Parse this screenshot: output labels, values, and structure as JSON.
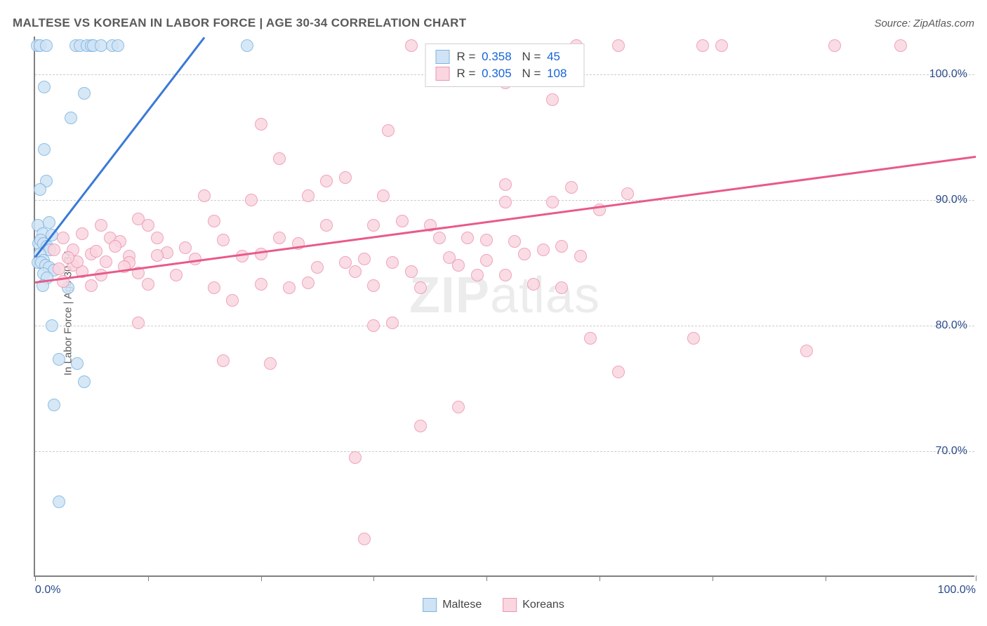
{
  "title": "MALTESE VS KOREAN IN LABOR FORCE | AGE 30-34 CORRELATION CHART",
  "source": "Source: ZipAtlas.com",
  "y_axis_label": "In Labor Force | Age 30-34",
  "watermark_bold": "ZIP",
  "watermark_rest": "atlas",
  "chart": {
    "type": "scatter",
    "xlim": [
      0,
      100
    ],
    "ylim": [
      60,
      103
    ],
    "y_ticks": [
      70,
      80,
      90,
      100
    ],
    "y_tick_labels": [
      "70.0%",
      "80.0%",
      "90.0%",
      "100.0%"
    ],
    "x_ticks": [
      0,
      12,
      24,
      36,
      48,
      60,
      72,
      84,
      100
    ],
    "x_tick_labels_shown": {
      "0": "0.0%",
      "100": "100.0%"
    },
    "point_radius": 9,
    "background_color": "#ffffff",
    "grid_color": "#cccccc",
    "axis_color": "#808080",
    "series": [
      {
        "name": "Maltese",
        "label": "Maltese",
        "fill": "#cfe3f5",
        "stroke": "#7cb3e0",
        "line_color": "#3a7ad6",
        "R": "0.358",
        "N": "45",
        "trend": {
          "x1": 0,
          "y1": 85.5,
          "x2": 18,
          "y2": 103
        },
        "points": [
          [
            0.2,
            102.3
          ],
          [
            0.5,
            102.3
          ],
          [
            1.2,
            102.3
          ],
          [
            4.3,
            102.3
          ],
          [
            4.8,
            102.3
          ],
          [
            5.5,
            102.3
          ],
          [
            6.0,
            102.3
          ],
          [
            6.2,
            102.3
          ],
          [
            7.0,
            102.3
          ],
          [
            8.2,
            102.3
          ],
          [
            8.8,
            102.3
          ],
          [
            22.5,
            102.3
          ],
          [
            1.0,
            99.0
          ],
          [
            5.2,
            98.5
          ],
          [
            3.8,
            96.5
          ],
          [
            1.0,
            94.0
          ],
          [
            1.2,
            91.5
          ],
          [
            0.5,
            90.8
          ],
          [
            0.3,
            88.0
          ],
          [
            1.5,
            88.2
          ],
          [
            0.8,
            87.3
          ],
          [
            1.8,
            87.2
          ],
          [
            0.4,
            86.5
          ],
          [
            0.6,
            86.8
          ],
          [
            0.9,
            86.5
          ],
          [
            1.3,
            86.3
          ],
          [
            1.6,
            86.0
          ],
          [
            0.5,
            85.7
          ],
          [
            0.9,
            85.2
          ],
          [
            0.3,
            85.0
          ],
          [
            0.7,
            85.0
          ],
          [
            1.1,
            84.8
          ],
          [
            1.5,
            84.6
          ],
          [
            2.0,
            84.4
          ],
          [
            0.9,
            84.1
          ],
          [
            1.3,
            83.8
          ],
          [
            0.8,
            83.2
          ],
          [
            3.5,
            83.0
          ],
          [
            1.8,
            80.0
          ],
          [
            2.5,
            77.3
          ],
          [
            4.5,
            77.0
          ],
          [
            5.2,
            75.5
          ],
          [
            2.0,
            73.7
          ],
          [
            2.5,
            66.0
          ]
        ]
      },
      {
        "name": "Koreans",
        "label": "Koreans",
        "fill": "#fad6e0",
        "stroke": "#ed94b0",
        "line_color": "#e85a8a",
        "R": "0.305",
        "N": "108",
        "trend": {
          "x1": 0,
          "y1": 83.5,
          "x2": 100,
          "y2": 93.5
        },
        "points": [
          [
            40,
            102.3
          ],
          [
            57.5,
            102.3
          ],
          [
            62,
            102.3
          ],
          [
            71,
            102.3
          ],
          [
            73,
            102.3
          ],
          [
            85,
            102.3
          ],
          [
            92,
            102.3
          ],
          [
            50,
            99.3
          ],
          [
            55,
            98.0
          ],
          [
            24,
            96.0
          ],
          [
            37.5,
            95.5
          ],
          [
            26,
            93.3
          ],
          [
            31,
            91.5
          ],
          [
            33,
            91.8
          ],
          [
            50,
            91.2
          ],
          [
            57,
            91.0
          ],
          [
            63,
            90.5
          ],
          [
            37,
            90.3
          ],
          [
            18,
            90.3
          ],
          [
            23,
            90.0
          ],
          [
            29,
            90.3
          ],
          [
            50,
            89.8
          ],
          [
            55,
            89.8
          ],
          [
            60,
            89.2
          ],
          [
            7,
            88.0
          ],
          [
            11,
            88.5
          ],
          [
            12,
            88.0
          ],
          [
            19,
            88.3
          ],
          [
            31,
            88.0
          ],
          [
            36,
            88.0
          ],
          [
            39,
            88.3
          ],
          [
            42,
            88.0
          ],
          [
            3,
            87.0
          ],
          [
            5,
            87.3
          ],
          [
            8,
            87.0
          ],
          [
            9,
            86.7
          ],
          [
            13,
            87.0
          ],
          [
            20,
            86.8
          ],
          [
            26,
            87.0
          ],
          [
            28,
            86.5
          ],
          [
            43,
            87.0
          ],
          [
            46,
            87.0
          ],
          [
            48,
            86.8
          ],
          [
            51,
            86.7
          ],
          [
            2,
            86.0
          ],
          [
            4,
            86.0
          ],
          [
            6,
            85.7
          ],
          [
            10,
            85.5
          ],
          [
            14,
            85.8
          ],
          [
            17,
            85.3
          ],
          [
            22,
            85.5
          ],
          [
            33,
            85.0
          ],
          [
            35,
            85.3
          ],
          [
            38,
            85.0
          ],
          [
            44,
            85.4
          ],
          [
            2.5,
            84.5
          ],
          [
            4,
            84.8
          ],
          [
            5,
            84.3
          ],
          [
            7,
            84.0
          ],
          [
            11,
            84.2
          ],
          [
            15,
            84.0
          ],
          [
            30,
            84.6
          ],
          [
            34,
            84.3
          ],
          [
            40,
            84.3
          ],
          [
            47,
            84.0
          ],
          [
            50,
            84.0
          ],
          [
            3,
            83.5
          ],
          [
            6,
            83.2
          ],
          [
            12,
            83.3
          ],
          [
            19,
            83.0
          ],
          [
            24,
            83.3
          ],
          [
            27,
            83.0
          ],
          [
            29,
            83.4
          ],
          [
            36,
            83.2
          ],
          [
            41,
            83.0
          ],
          [
            53,
            83.3
          ],
          [
            56,
            83.0
          ],
          [
            21,
            82.0
          ],
          [
            11,
            80.2
          ],
          [
            36,
            80.0
          ],
          [
            38,
            80.2
          ],
          [
            59,
            79.0
          ],
          [
            70,
            79.0
          ],
          [
            82,
            78.0
          ],
          [
            20,
            77.2
          ],
          [
            25,
            77.0
          ],
          [
            62,
            76.3
          ],
          [
            45,
            73.5
          ],
          [
            41,
            72.0
          ],
          [
            34,
            69.5
          ],
          [
            35,
            63.0
          ],
          [
            10,
            85.0
          ],
          [
            13,
            85.6
          ],
          [
            16,
            86.2
          ],
          [
            24,
            85.7
          ],
          [
            4.5,
            85.1
          ],
          [
            6.5,
            85.9
          ],
          [
            8.5,
            86.3
          ],
          [
            52,
            85.7
          ],
          [
            54,
            86.0
          ],
          [
            56,
            86.3
          ],
          [
            58,
            85.5
          ],
          [
            45,
            84.8
          ],
          [
            48,
            85.2
          ],
          [
            3.5,
            85.4
          ],
          [
            7.5,
            85.1
          ],
          [
            9.5,
            84.7
          ]
        ]
      }
    ]
  },
  "legend_top": {
    "rows": [
      {
        "swatch_fill": "#cfe3f5",
        "swatch_stroke": "#7cb3e0",
        "r_label": "R =",
        "r_val": "0.358",
        "n_label": "N =",
        "n_val": " 45"
      },
      {
        "swatch_fill": "#fad6e0",
        "swatch_stroke": "#ed94b0",
        "r_label": "R =",
        "r_val": "0.305",
        "n_label": "N =",
        "n_val": "108"
      }
    ]
  },
  "legend_bottom": {
    "items": [
      {
        "fill": "#cfe3f5",
        "stroke": "#7cb3e0",
        "label": "Maltese"
      },
      {
        "fill": "#fad6e0",
        "stroke": "#ed94b0",
        "label": "Koreans"
      }
    ]
  }
}
